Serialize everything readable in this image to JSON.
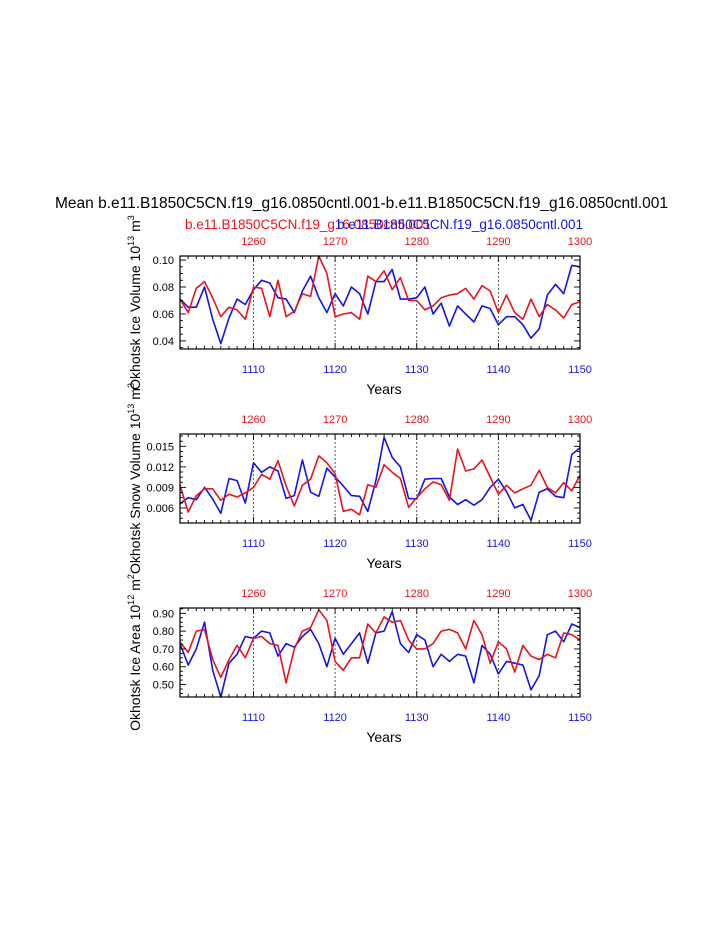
{
  "title": "Mean b.e11.B1850C5CN.f19_g16.0850cntl.001-b.e11.B1850C5CN.f19_g16.0850cntl.001",
  "legend": {
    "red_label": "b.e11.B1850C5CN.f19_g16.0850cntl.001",
    "blue_label": "b.e11.B1850C5CN.f19_g16.0850cntl.001"
  },
  "colors": {
    "red": "#e8141c",
    "blue": "#1414e6",
    "axis": "#000000"
  },
  "chart_data": [
    {
      "type": "line",
      "name": "ice-volume",
      "ylabel": "Okhotsk Ice Volume 10^13 m^3",
      "ylabel_main": "Okhotsk Ice Volume 10",
      "ylabel_exp": "13",
      "ylabel_unit": "m",
      "ylabel_unit_exp": "3",
      "xlabel": "Years",
      "xlim": [
        1101,
        1150
      ],
      "ylim": [
        0.034,
        0.103
      ],
      "yticks": [
        0.04,
        0.06,
        0.08,
        0.1
      ],
      "ytick_labels": [
        "0.04",
        "0.06",
        "0.08",
        "0.10"
      ],
      "xticks": [
        1110,
        1120,
        1130,
        1140,
        1150
      ],
      "xtick_labels": [
        "1110",
        "1120",
        "1130",
        "1140",
        "1150"
      ],
      "top_ticks": [
        1110,
        1120,
        1130,
        1140,
        1150
      ],
      "top_tick_labels": [
        "1260",
        "1270",
        "1280",
        "1290",
        "1300"
      ],
      "vlines": [
        1110,
        1120,
        1130,
        1140
      ],
      "series": [
        {
          "name": "blue",
          "color": "#1414e6",
          "x": [
            1101,
            1102,
            1103,
            1104,
            1105,
            1106,
            1107,
            1108,
            1109,
            1110,
            1111,
            1112,
            1113,
            1114,
            1115,
            1116,
            1117,
            1118,
            1119,
            1120,
            1121,
            1122,
            1123,
            1124,
            1125,
            1126,
            1127,
            1128,
            1129,
            1130,
            1131,
            1132,
            1133,
            1134,
            1135,
            1136,
            1137,
            1138,
            1139,
            1140,
            1141,
            1142,
            1143,
            1144,
            1145,
            1146,
            1147,
            1148,
            1149,
            1150
          ],
          "values": [
            0.071,
            0.065,
            0.065,
            0.08,
            0.056,
            0.038,
            0.057,
            0.071,
            0.067,
            0.078,
            0.085,
            0.083,
            0.072,
            0.071,
            0.061,
            0.077,
            0.088,
            0.072,
            0.061,
            0.075,
            0.066,
            0.08,
            0.075,
            0.06,
            0.084,
            0.084,
            0.093,
            0.071,
            0.071,
            0.072,
            0.08,
            0.06,
            0.068,
            0.051,
            0.066,
            0.06,
            0.054,
            0.066,
            0.064,
            0.052,
            0.058,
            0.058,
            0.052,
            0.042,
            0.049,
            0.074,
            0.082,
            0.075,
            0.096,
            0.095
          ]
        },
        {
          "name": "red",
          "color": "#e8141c",
          "x": [
            1101,
            1102,
            1103,
            1104,
            1105,
            1106,
            1107,
            1108,
            1109,
            1110,
            1111,
            1112,
            1113,
            1114,
            1115,
            1116,
            1117,
            1118,
            1119,
            1120,
            1121,
            1122,
            1123,
            1124,
            1125,
            1126,
            1127,
            1128,
            1129,
            1130,
            1131,
            1132,
            1133,
            1134,
            1135,
            1136,
            1137,
            1138,
            1139,
            1140,
            1141,
            1142,
            1143,
            1144,
            1145,
            1146,
            1147,
            1148,
            1149,
            1150
          ],
          "values": [
            0.071,
            0.061,
            0.079,
            0.084,
            0.072,
            0.058,
            0.065,
            0.063,
            0.056,
            0.08,
            0.079,
            0.058,
            0.085,
            0.058,
            0.062,
            0.075,
            0.073,
            0.103,
            0.09,
            0.058,
            0.06,
            0.061,
            0.056,
            0.088,
            0.084,
            0.092,
            0.078,
            0.087,
            0.07,
            0.07,
            0.063,
            0.066,
            0.072,
            0.074,
            0.075,
            0.079,
            0.071,
            0.081,
            0.077,
            0.061,
            0.074,
            0.061,
            0.056,
            0.071,
            0.058,
            0.067,
            0.063,
            0.057,
            0.067,
            0.069
          ]
        }
      ]
    },
    {
      "type": "line",
      "name": "snow-volume",
      "ylabel": "Okhotsk Snow Volume 10^13 m^3",
      "ylabel_main": "Okhotsk Snow Volume 10",
      "ylabel_exp": "13",
      "ylabel_unit": "m",
      "ylabel_unit_exp": "3",
      "xlabel": "Years",
      "xlim": [
        1101,
        1150
      ],
      "ylim": [
        0.0038,
        0.0168
      ],
      "yticks": [
        0.006,
        0.009,
        0.012,
        0.015
      ],
      "ytick_labels": [
        "0.006",
        "0.009",
        "0.012",
        "0.015"
      ],
      "xticks": [
        1110,
        1120,
        1130,
        1140,
        1150
      ],
      "xtick_labels": [
        "1110",
        "1120",
        "1130",
        "1140",
        "1150"
      ],
      "top_ticks": [
        1110,
        1120,
        1130,
        1140,
        1150
      ],
      "top_tick_labels": [
        "1260",
        "1270",
        "1280",
        "1290",
        "1300"
      ],
      "vlines": [
        1110,
        1120,
        1130,
        1140
      ],
      "series": [
        {
          "name": "blue",
          "color": "#1414e6",
          "x": [
            1101,
            1102,
            1103,
            1104,
            1105,
            1106,
            1107,
            1108,
            1109,
            1110,
            1111,
            1112,
            1113,
            1114,
            1115,
            1116,
            1117,
            1118,
            1119,
            1120,
            1121,
            1122,
            1123,
            1124,
            1125,
            1126,
            1127,
            1128,
            1129,
            1130,
            1131,
            1132,
            1133,
            1134,
            1135,
            1136,
            1137,
            1138,
            1139,
            1140,
            1141,
            1142,
            1143,
            1144,
            1145,
            1146,
            1147,
            1148,
            1149,
            1150
          ],
          "values": [
            0.0066,
            0.0075,
            0.0072,
            0.009,
            0.0073,
            0.0052,
            0.0103,
            0.01,
            0.0067,
            0.0126,
            0.0112,
            0.012,
            0.0114,
            0.0074,
            0.0078,
            0.013,
            0.0083,
            0.0077,
            0.0118,
            0.0105,
            0.0092,
            0.0078,
            0.0077,
            0.0055,
            0.01,
            0.0163,
            0.0134,
            0.012,
            0.0074,
            0.0073,
            0.0102,
            0.0103,
            0.0103,
            0.0076,
            0.0065,
            0.0072,
            0.0064,
            0.0072,
            0.009,
            0.0102,
            0.0084,
            0.006,
            0.0065,
            0.0042,
            0.0083,
            0.0088,
            0.0077,
            0.0075,
            0.0138,
            0.0148
          ]
        },
        {
          "name": "red",
          "color": "#e8141c",
          "x": [
            1101,
            1102,
            1103,
            1104,
            1105,
            1106,
            1107,
            1108,
            1109,
            1110,
            1111,
            1112,
            1113,
            1114,
            1115,
            1116,
            1117,
            1118,
            1119,
            1120,
            1121,
            1122,
            1123,
            1124,
            1125,
            1126,
            1127,
            1128,
            1129,
            1130,
            1131,
            1132,
            1133,
            1134,
            1135,
            1136,
            1137,
            1138,
            1139,
            1140,
            1141,
            1142,
            1143,
            1144,
            1145,
            1146,
            1147,
            1148,
            1149,
            1150
          ],
          "values": [
            0.0093,
            0.0054,
            0.0078,
            0.0088,
            0.0088,
            0.0071,
            0.008,
            0.0076,
            0.0082,
            0.009,
            0.0109,
            0.0102,
            0.0129,
            0.0092,
            0.0063,
            0.0093,
            0.0102,
            0.0136,
            0.0126,
            0.011,
            0.0055,
            0.0058,
            0.005,
            0.0094,
            0.009,
            0.0123,
            0.0112,
            0.0103,
            0.0061,
            0.0075,
            0.0088,
            0.0098,
            0.0094,
            0.0071,
            0.0146,
            0.0114,
            0.0117,
            0.013,
            0.0105,
            0.008,
            0.0093,
            0.0082,
            0.0088,
            0.0093,
            0.0115,
            0.009,
            0.0082,
            0.0097,
            0.0085,
            0.0108
          ]
        }
      ]
    },
    {
      "type": "line",
      "name": "ice-area",
      "ylabel": "Okhotsk Ice Area 10^12 m^2",
      "ylabel_main": "Okhotsk Ice Area 10",
      "ylabel_exp": "12",
      "ylabel_unit": "m",
      "ylabel_unit_exp": "2",
      "xlabel": "Years",
      "xlim": [
        1101,
        1150
      ],
      "ylim": [
        0.43,
        0.93
      ],
      "yticks": [
        0.5,
        0.6,
        0.7,
        0.8,
        0.9
      ],
      "ytick_labels": [
        "0.50",
        "0.60",
        "0.70",
        "0.80",
        "0.90"
      ],
      "xticks": [
        1110,
        1120,
        1130,
        1140,
        1150
      ],
      "xtick_labels": [
        "1110",
        "1120",
        "1130",
        "1140",
        "1150"
      ],
      "top_ticks": [
        1110,
        1120,
        1130,
        1140,
        1150
      ],
      "top_tick_labels": [
        "1260",
        "1270",
        "1280",
        "1290",
        "1300"
      ],
      "vlines": [
        1110,
        1120,
        1130,
        1140
      ],
      "series": [
        {
          "name": "blue",
          "color": "#1414e6",
          "x": [
            1101,
            1102,
            1103,
            1104,
            1105,
            1106,
            1107,
            1108,
            1109,
            1110,
            1111,
            1112,
            1113,
            1114,
            1115,
            1116,
            1117,
            1118,
            1119,
            1120,
            1121,
            1122,
            1123,
            1124,
            1125,
            1126,
            1127,
            1128,
            1129,
            1130,
            1131,
            1132,
            1133,
            1134,
            1135,
            1136,
            1137,
            1138,
            1139,
            1140,
            1141,
            1142,
            1143,
            1144,
            1145,
            1146,
            1147,
            1148,
            1149,
            1150
          ],
          "values": [
            0.73,
            0.61,
            0.7,
            0.85,
            0.58,
            0.43,
            0.62,
            0.67,
            0.77,
            0.76,
            0.8,
            0.79,
            0.66,
            0.73,
            0.71,
            0.77,
            0.81,
            0.73,
            0.6,
            0.76,
            0.67,
            0.73,
            0.79,
            0.62,
            0.79,
            0.8,
            0.91,
            0.73,
            0.68,
            0.78,
            0.75,
            0.6,
            0.67,
            0.63,
            0.67,
            0.66,
            0.51,
            0.72,
            0.67,
            0.56,
            0.63,
            0.62,
            0.61,
            0.47,
            0.55,
            0.78,
            0.8,
            0.74,
            0.84,
            0.82
          ]
        },
        {
          "name": "red",
          "color": "#e8141c",
          "x": [
            1101,
            1102,
            1103,
            1104,
            1105,
            1106,
            1107,
            1108,
            1109,
            1110,
            1111,
            1112,
            1113,
            1114,
            1115,
            1116,
            1117,
            1118,
            1119,
            1120,
            1121,
            1122,
            1123,
            1124,
            1125,
            1126,
            1127,
            1128,
            1129,
            1130,
            1131,
            1132,
            1133,
            1134,
            1135,
            1136,
            1137,
            1138,
            1139,
            1140,
            1141,
            1142,
            1143,
            1144,
            1145,
            1146,
            1147,
            1148,
            1149,
            1150
          ],
          "values": [
            0.74,
            0.68,
            0.8,
            0.81,
            0.64,
            0.54,
            0.64,
            0.72,
            0.65,
            0.76,
            0.77,
            0.73,
            0.72,
            0.51,
            0.7,
            0.8,
            0.82,
            0.92,
            0.86,
            0.63,
            0.58,
            0.65,
            0.65,
            0.84,
            0.79,
            0.88,
            0.85,
            0.86,
            0.75,
            0.7,
            0.7,
            0.73,
            0.8,
            0.81,
            0.79,
            0.7,
            0.86,
            0.78,
            0.62,
            0.74,
            0.7,
            0.57,
            0.72,
            0.66,
            0.64,
            0.67,
            0.65,
            0.79,
            0.78,
            0.75
          ]
        }
      ]
    }
  ]
}
